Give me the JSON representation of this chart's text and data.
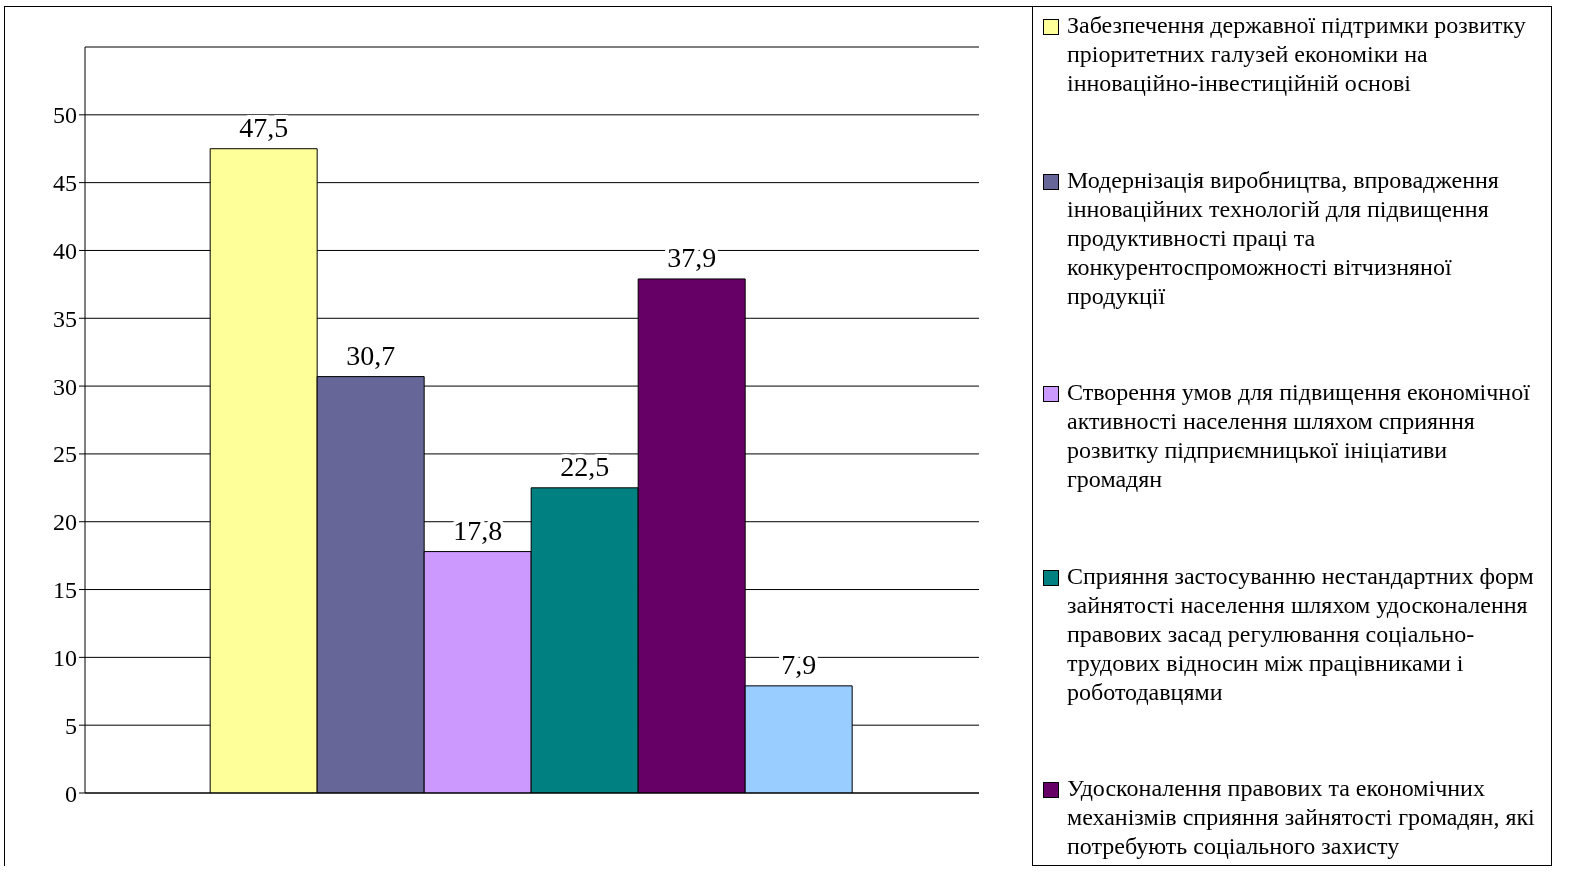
{
  "chart_data": {
    "type": "bar",
    "categories": [
      null
    ],
    "series": [
      {
        "name": "Забезпечення державної підтримки розвитку пріоритетних галузей економіки на інноваційно-інвестиційній основі",
        "color": "#ffff99",
        "values": [
          47.5
        ],
        "value_labels": [
          "47,5"
        ]
      },
      {
        "name": "Модернізація виробництва, впровадження інноваційних технологій для підвищення продуктивності праці та конкурентоспроможності вітчизняної продукції",
        "color": "#666699",
        "values": [
          30.7
        ],
        "value_labels": [
          "30,7"
        ]
      },
      {
        "name": "Створення умов для підвищення економічної активності населення шляхом сприяння розвитку підприємницької ініціативи громадян",
        "color": "#cc99ff",
        "values": [
          17.8
        ],
        "value_labels": [
          "17,8"
        ]
      },
      {
        "name": "Сприяння застосуванню нестандартних форм зайнятості населення шляхом удосконалення правових засад регулювання соціально-трудових відносин між працівниками і роботодавцями",
        "color": "#008080",
        "values": [
          22.5
        ],
        "value_labels": [
          "22,5"
        ]
      },
      {
        "name": "Удосконалення правових та економічних механізмів сприяння зайнятості громадян, які потребують соціального захисту",
        "color": "#660066",
        "values": [
          37.9
        ],
        "value_labels": [
          "37,9"
        ]
      },
      {
        "color": "#99ccff",
        "values": [
          7.9
        ],
        "value_labels": [
          "7,9"
        ]
      }
    ],
    "ylim": [
      0,
      55
    ],
    "yticks": [
      0,
      5,
      10,
      15,
      20,
      25,
      30,
      35,
      40,
      45,
      50
    ],
    "grid": "y",
    "legend": "right"
  }
}
